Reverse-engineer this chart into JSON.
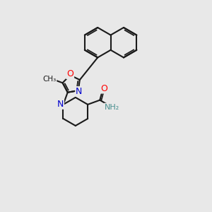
{
  "bg_color": "#e8e8e8",
  "bond_color": "#1a1a1a",
  "bond_width": 1.5,
  "atom_colors": {
    "O": "#ff0000",
    "N": "#0000cc",
    "NH": "#4a9090",
    "C": "#1a1a1a"
  }
}
